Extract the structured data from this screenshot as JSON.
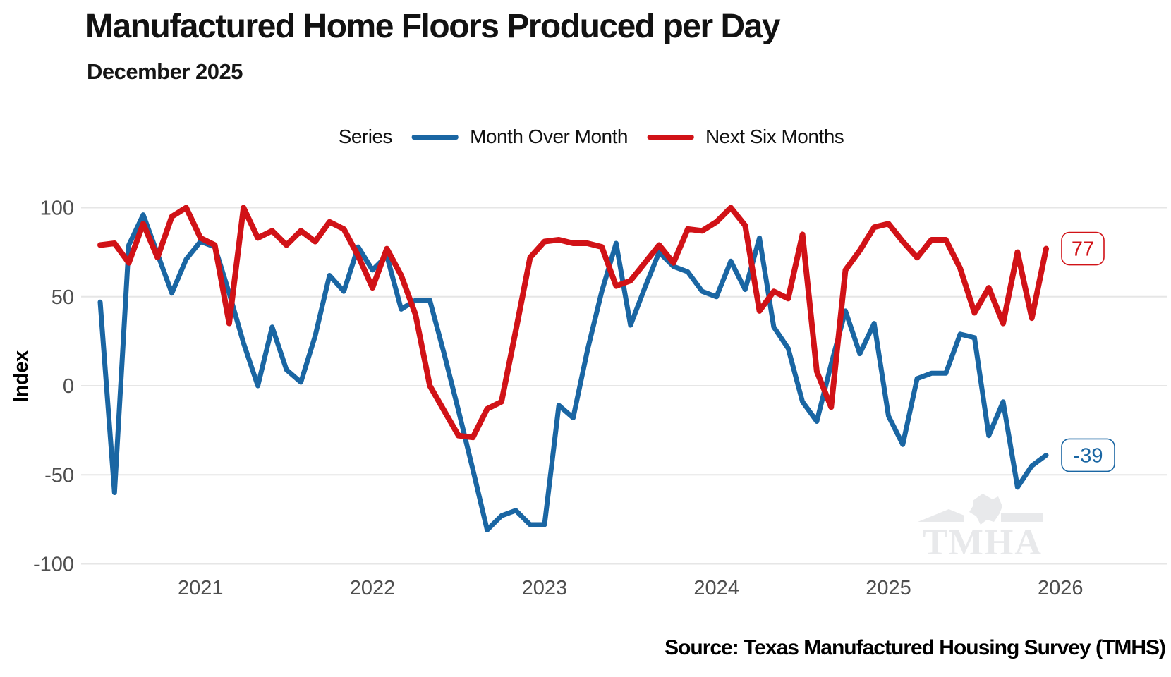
{
  "header": {
    "title": "Manufactured Home Floors Produced per Day",
    "subtitle": "December 2025"
  },
  "legend": {
    "label": "Series",
    "items": [
      {
        "label": "Month Over Month"
      },
      {
        "label": "Next Six Months"
      }
    ]
  },
  "axes": {
    "y_label": "Index",
    "y_ticks": [
      100,
      50,
      0,
      -50,
      -100
    ],
    "x_ticks": [
      2021,
      2022,
      2023,
      2024,
      2025,
      2026
    ]
  },
  "end_labels": {
    "month_over_month": "-39",
    "next_six_months": "77"
  },
  "watermark": "TMHA",
  "source": "Source: Texas Manufactured Housing Survey (TMHS)",
  "colors": {
    "blue": "#1a66a3",
    "red": "#d11217",
    "grid": "#e6e6e6",
    "tick_text": "#4f4f4f",
    "watermark": "#e8e9eb"
  },
  "chart_data": {
    "type": "line",
    "title": "Manufactured Home Floors Produced per Day",
    "subtitle": "December 2025",
    "xlabel": "",
    "ylabel": "Index",
    "ylim": [
      -100,
      100
    ],
    "grid": "horizontal",
    "legend_position": "top",
    "x_start": "2020-06",
    "x_interval": "monthly",
    "x_end": "2025-12",
    "n_points": 67,
    "series": [
      {
        "name": "Month Over Month",
        "slug": "month-over-month",
        "color": "#1a66a3",
        "end_label": "-39",
        "values": [
          47,
          -60,
          79,
          96,
          74,
          52,
          71,
          81,
          78,
          52,
          24,
          0,
          33,
          9,
          2,
          28,
          62,
          53,
          78,
          65,
          73,
          43,
          48,
          48,
          18,
          -14,
          -47,
          -81,
          -73,
          -70,
          -78,
          -78,
          -11,
          -18,
          20,
          53,
          80,
          34,
          55,
          75,
          67,
          64,
          53,
          50,
          70,
          54,
          83,
          33,
          21,
          -9,
          -20,
          12,
          42,
          18,
          35,
          -17,
          -33,
          4,
          7,
          7,
          29,
          27,
          -28,
          -9,
          -57,
          -45,
          -39
        ]
      },
      {
        "name": "Next Six Months",
        "slug": "next-six-months",
        "color": "#d11217",
        "end_label": "77",
        "values": [
          79,
          80,
          69,
          91,
          72,
          95,
          100,
          83,
          79,
          35,
          100,
          83,
          87,
          79,
          87,
          81,
          92,
          88,
          73,
          55,
          77,
          62,
          40,
          0,
          -14,
          -28,
          -29,
          -13,
          -9,
          31,
          72,
          81,
          82,
          80,
          80,
          78,
          56,
          59,
          69,
          79,
          69,
          88,
          87,
          92,
          100,
          90,
          42,
          53,
          49,
          85,
          8,
          -12,
          65,
          76,
          89,
          91,
          81,
          72,
          82,
          82,
          66,
          41,
          55,
          35,
          75,
          38,
          77
        ]
      }
    ]
  }
}
